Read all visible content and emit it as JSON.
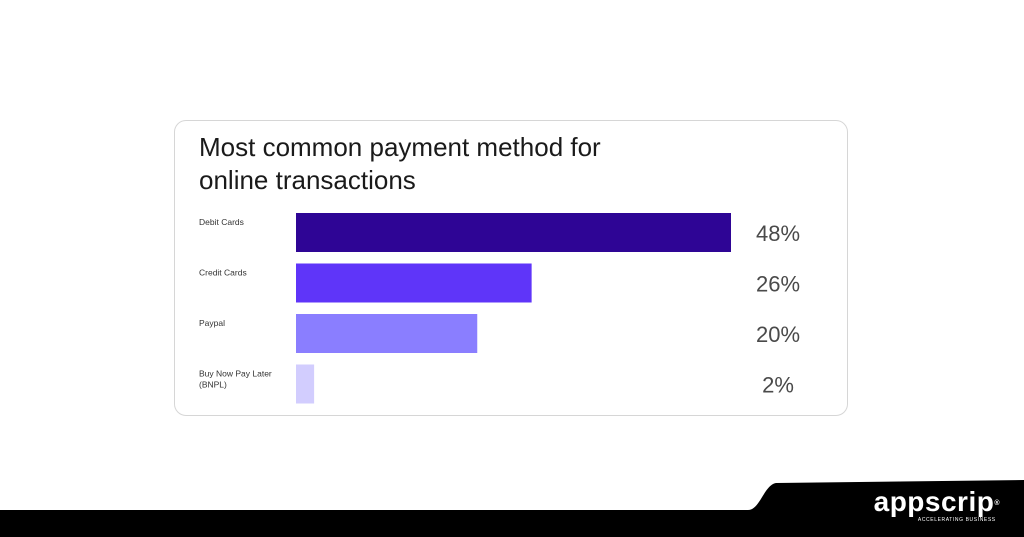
{
  "chart_data": {
    "type": "bar",
    "orientation": "horizontal",
    "title": "Most common payment method for online transactions",
    "categories": [
      "Debit Cards",
      "Credit Cards",
      "Paypal",
      "Buy Now Pay Later (BNPL)"
    ],
    "values": [
      48,
      26,
      20,
      2
    ],
    "value_labels": [
      "48%",
      "26%",
      "20%",
      "2%"
    ],
    "unit": "%",
    "bar_colors": [
      "#2e0595",
      "#5f35f9",
      "#8a7eff",
      "#d2cdfe"
    ],
    "xlim": [
      0,
      48
    ],
    "grid": false,
    "legend": "none"
  },
  "brand": {
    "name": "appscrip",
    "registered_mark": "®",
    "tagline": "ACCELERATING BUSINESS"
  },
  "colors": {
    "footer_background": "#000000",
    "value_label_color": "#4a4a4a",
    "category_label_color": "#333333"
  }
}
